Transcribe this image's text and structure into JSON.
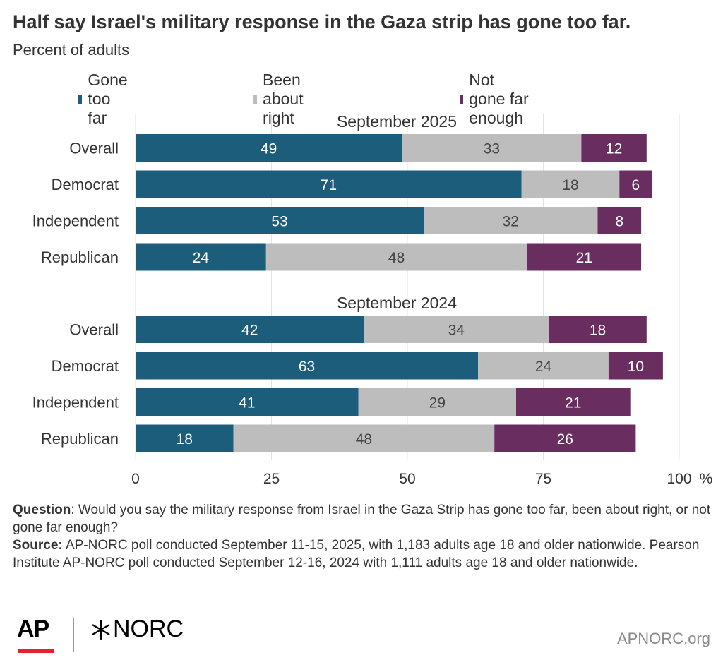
{
  "title": "Half say Israel's military response in the Gaza strip has gone too far.",
  "subtitle": "Percent of adults",
  "legend": [
    {
      "label": "Gone too far",
      "color": "#1d5d7c"
    },
    {
      "label": "Been about right",
      "color": "#bdbdbd"
    },
    {
      "label": "Not gone far enough",
      "color": "#6a2d5f"
    }
  ],
  "chart_data": {
    "type": "bar",
    "orientation": "horizontal",
    "stacked": true,
    "xlim": [
      0,
      100
    ],
    "xticks": [
      "0",
      "25",
      "50",
      "75",
      "100"
    ],
    "x_unit": "%",
    "grid": true,
    "series_names": [
      "Gone too far",
      "Been about right",
      "Not gone far enough"
    ],
    "colors": [
      "#1d5d7c",
      "#bdbdbd",
      "#6a2d5f"
    ],
    "groups": [
      {
        "label": "September 2025",
        "categories": [
          "Overall",
          "Democrat",
          "Independent",
          "Republican"
        ],
        "values": [
          [
            49,
            33,
            12
          ],
          [
            71,
            18,
            6
          ],
          [
            53,
            32,
            8
          ],
          [
            24,
            48,
            21
          ]
        ]
      },
      {
        "label": "September 2024",
        "categories": [
          "Overall",
          "Democrat",
          "Independent",
          "Republican"
        ],
        "values": [
          [
            42,
            34,
            18
          ],
          [
            63,
            24,
            10
          ],
          [
            41,
            29,
            21
          ],
          [
            18,
            48,
            26
          ]
        ]
      }
    ]
  },
  "notes": {
    "question_label": "Question",
    "question_text": ": Would you say the military response from Israel in the Gaza Strip has gone too far, been about right, or not gone far enough?",
    "source_label": "Source:",
    "source_text": " AP-NORC poll conducted September 11-15, 2025, with 1,183 adults age 18 and older nationwide. Pearson Institute AP-NORC poll conducted September 12-16, 2024 with 1,111 adults age 18 and older nationwide."
  },
  "footer": {
    "ap_logo": "AP",
    "norc_logo": "NORC",
    "url": "APNORC.org"
  }
}
